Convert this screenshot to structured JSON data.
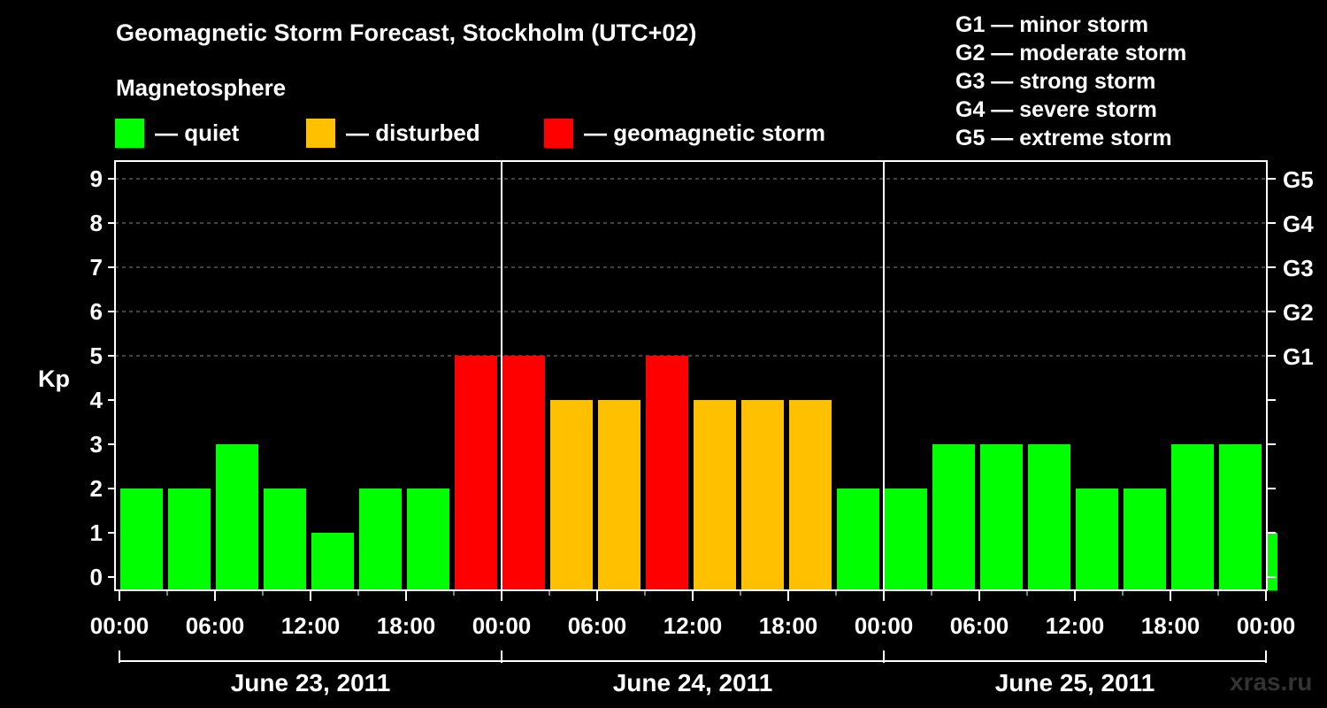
{
  "title": "Geomagnetic Storm Forecast, Stockholm (UTC+02)",
  "magnetosphere_label": "Magnetosphere",
  "legend": [
    {
      "label": "— quiet",
      "color": "#00ff00"
    },
    {
      "label": "— disturbed",
      "color": "#ffc000"
    },
    {
      "label": "— geomagnetic storm",
      "color": "#ff0000"
    }
  ],
  "g_scale": [
    "G1 — minor storm",
    "G2 — moderate storm",
    "G3 — strong storm",
    "G4 — severe storm",
    "G5 — extreme storm"
  ],
  "watermark": "xras.ru",
  "chart_data": {
    "type": "bar",
    "ylabel": "Kp",
    "ylim": [
      0,
      9
    ],
    "y_ticks": [
      "0",
      "1",
      "2",
      "3",
      "4",
      "5",
      "6",
      "7",
      "8",
      "9"
    ],
    "right_axis_labels": [
      {
        "kp": 5,
        "label": "G1"
      },
      {
        "kp": 6,
        "label": "G2"
      },
      {
        "kp": 7,
        "label": "G3"
      },
      {
        "kp": 8,
        "label": "G4"
      },
      {
        "kp": 9,
        "label": "G5"
      }
    ],
    "grid": "horizontal dashed",
    "x_tick_labels": [
      "00:00",
      "06:00",
      "12:00",
      "18:00",
      "00:00",
      "06:00",
      "12:00",
      "18:00",
      "00:00",
      "06:00",
      "12:00",
      "18:00",
      "00:00"
    ],
    "day_labels": [
      "June 23, 2011",
      "June 24, 2011",
      "June 25, 2011"
    ],
    "color_levels": {
      "quiet": "#00ff00",
      "disturbed": "#ffc000",
      "storm": "#ff0000"
    },
    "values": [
      2,
      2,
      3,
      2,
      1,
      2,
      2,
      5,
      5,
      4,
      4,
      5,
      4,
      4,
      4,
      2,
      2,
      3,
      3,
      3,
      2,
      2,
      3,
      3,
      1
    ]
  }
}
